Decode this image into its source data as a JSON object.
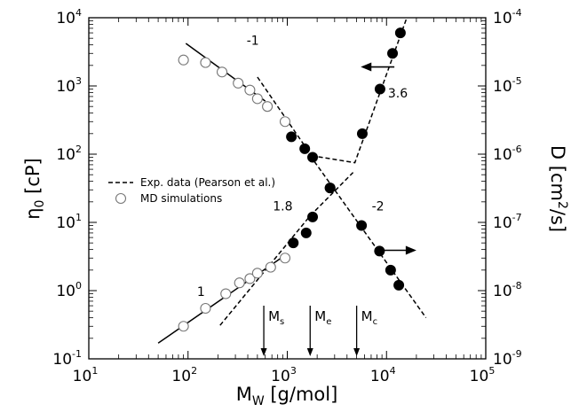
{
  "chart_data": {
    "type": "scatter",
    "xlabel_main": "M",
    "xlabel_sub": "W",
    "xlabel_unit": " [g/mol]",
    "ylabel_left_greek": "η",
    "ylabel_left_sub": "0",
    "ylabel_left_unit": " [cP]",
    "ylabel_right_main": "D [cm",
    "ylabel_right_sup": "2",
    "ylabel_right_unit": "/s]",
    "x_scale": "log",
    "xlim": [
      10,
      100000
    ],
    "ylim_left": [
      0.1,
      10000
    ],
    "ylim_right": [
      1e-09,
      0.0001
    ],
    "x_ticks": [
      10,
      100,
      1000,
      10000,
      100000
    ],
    "x_tick_exp": [
      "1",
      "2",
      "3",
      "4",
      "5"
    ],
    "y_left_ticks": [
      0.1,
      1,
      10,
      100,
      1000,
      10000
    ],
    "y_left_tick_exp": [
      "-1",
      "0",
      "1",
      "2",
      "3",
      "4"
    ],
    "y_right_tick_exp": [
      "-9",
      "-8",
      "-7",
      "-6",
      "-5",
      "-4"
    ],
    "tick_base": "10",
    "grid": false,
    "legend": {
      "position": "center-left",
      "entries": [
        {
          "label": "Exp. data (Pearson et al.)",
          "marker": "dashed-line"
        },
        {
          "label": "MD simulations",
          "marker": "open-circle"
        }
      ]
    },
    "series": [
      {
        "name": "MD simulations",
        "axis": "left",
        "marker": "open-circle",
        "x": [
          90,
          150,
          220,
          320,
          420,
          500,
          630,
          950
        ],
        "y": [
          2400,
          2200,
          1600,
          1100,
          870,
          650,
          500,
          300
        ]
      },
      {
        "name": "",
        "axis": "left",
        "marker": "filled-circle",
        "x": [
          1100,
          1500,
          1800,
          2700,
          5700,
          8600,
          11500,
          13800
        ],
        "y": [
          180,
          120,
          90,
          32,
          200,
          900,
          3000,
          6000
        ]
      },
      {
        "name": "MD simulations",
        "axis": "left",
        "marker": "open-circle",
        "x": [
          90,
          150,
          240,
          330,
          420,
          500,
          680,
          950
        ],
        "y": [
          0.3,
          0.55,
          0.9,
          1.3,
          1.5,
          1.8,
          2.2,
          3.0
        ]
      },
      {
        "name": "",
        "axis": "left",
        "marker": "filled-circle",
        "x": [
          1150,
          1550,
          1800,
          2700,
          5600,
          8500,
          11000,
          13300
        ],
        "y": [
          5,
          7,
          12,
          32,
          9,
          3.8,
          2.0,
          1.2
        ]
      }
    ],
    "fit_lines": [
      {
        "style": "solid",
        "x": [
          95,
          600
        ],
        "y": [
          4200,
          600
        ]
      },
      {
        "style": "dashed",
        "x": [
          500,
          1750
        ],
        "y": [
          1350,
          95
        ]
      },
      {
        "style": "dashed",
        "x": [
          1750,
          4800,
          16000
        ],
        "y": [
          95,
          75,
          10000
        ]
      },
      {
        "style": "solid",
        "x": [
          50,
          950
        ],
        "y": [
          0.17,
          3.3
        ]
      },
      {
        "style": "dashed",
        "x": [
          210,
          1700,
          4600
        ],
        "y": [
          0.31,
          12.5,
          54
        ]
      },
      {
        "style": "dashed",
        "x": [
          1700,
          25000
        ],
        "y": [
          95,
          0.4
        ]
      }
    ],
    "annotations": [
      {
        "text": "-1",
        "x": 450,
        "y": 4000
      },
      {
        "text": "3.6",
        "x": 13000,
        "y": 680
      },
      {
        "text": "1.8",
        "x": 900,
        "y": 15
      },
      {
        "text": "-2",
        "x": 8200,
        "y": 15
      },
      {
        "text": "1",
        "x": 135,
        "y": 0.83
      }
    ],
    "direction_arrows": [
      {
        "points_to": "left-axis",
        "x_from": 12000,
        "x_to": 5500,
        "y": 1900
      },
      {
        "points_to": "right-axis",
        "x_from": 9000,
        "x_to": 20000,
        "y": 3.9
      }
    ],
    "markers": [
      {
        "label": "M",
        "sub": "s",
        "x": 580
      },
      {
        "label": "M",
        "sub": "e",
        "x": 1700
      },
      {
        "label": "M",
        "sub": "c",
        "x": 5000
      }
    ]
  }
}
